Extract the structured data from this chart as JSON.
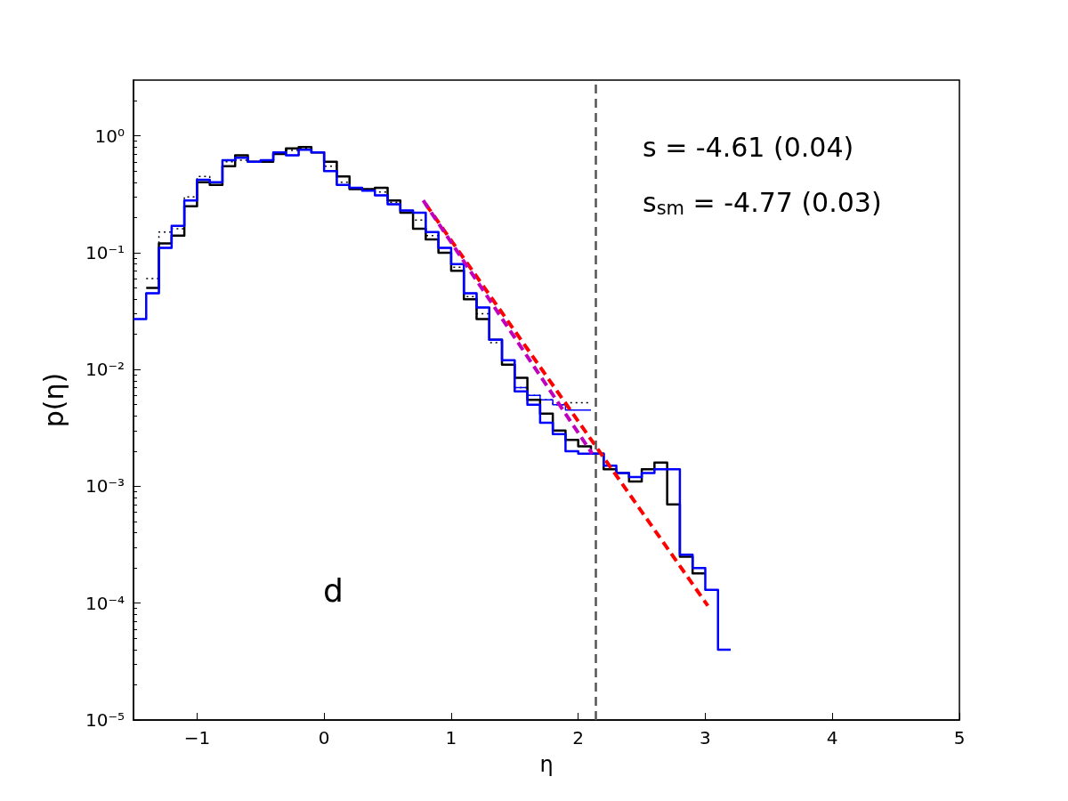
{
  "chart_data": {
    "type": "step",
    "xlabel": "η",
    "ylabel": "p(η)",
    "log": "y",
    "grid": false,
    "marker": "none",
    "xlim": [
      -1.5,
      5
    ],
    "xticks": [
      {
        "value": -1,
        "label": "−1"
      },
      0,
      1,
      2,
      3,
      4,
      5
    ],
    "ylim": [
      1e-05,
      3
    ],
    "yticks": [
      {
        "value": 1e-05,
        "label": "10⁻⁵"
      },
      {
        "value": 0.0001,
        "label": "10⁻⁴"
      },
      {
        "value": 0.001,
        "label": "10⁻³"
      },
      {
        "value": 0.01,
        "label": "10⁻²"
      },
      {
        "value": 0.1,
        "label": "10⁻¹"
      },
      {
        "value": 1,
        "label": "10⁰"
      }
    ],
    "series": [
      {
        "color": "#000000",
        "line_style": "dotted",
        "x": [
          -1.4,
          -1.3,
          -1.2,
          -1.1,
          -1.0,
          -0.9,
          -0.8,
          -0.7,
          -0.6,
          -0.5,
          -0.4,
          -0.3,
          -0.2,
          -0.1,
          0.0,
          0.1,
          0.2,
          0.3,
          0.4,
          0.5,
          0.6,
          0.7,
          0.8,
          0.9,
          1.0,
          1.1,
          1.2,
          1.3,
          1.4,
          1.5,
          1.6,
          1.7,
          1.8,
          1.9,
          2.0,
          2.1
        ],
        "values": [
          0.06,
          0.15,
          0.16,
          0.3,
          0.45,
          0.4,
          0.6,
          0.62,
          0.6,
          0.62,
          0.72,
          0.75,
          0.78,
          0.72,
          0.55,
          0.4,
          0.36,
          0.35,
          0.33,
          0.27,
          0.22,
          0.19,
          0.14,
          0.1,
          0.075,
          0.042,
          0.03,
          0.017,
          0.012,
          0.007,
          0.006,
          0.0055,
          0.005,
          0.0052,
          0.0052,
          0.0052
        ]
      },
      {
        "color": "#0000ff",
        "line_style": "solid",
        "x": [
          -1.4,
          -1.3,
          -1.2,
          -1.1,
          -1.0,
          -0.9,
          -0.8,
          -0.7,
          -0.6,
          -0.5,
          -0.4,
          -0.3,
          -0.2,
          -0.1,
          0.0,
          0.1,
          0.2,
          0.3,
          0.4,
          0.5,
          0.6,
          0.7,
          0.8,
          0.9,
          1.0,
          1.1,
          1.2,
          1.3,
          1.4,
          1.5,
          1.6,
          1.7,
          1.8,
          1.9,
          2.0,
          2.1
        ],
        "values": [
          0.045,
          0.11,
          0.17,
          0.28,
          0.42,
          0.4,
          0.62,
          0.65,
          0.6,
          0.62,
          0.72,
          0.68,
          0.76,
          0.72,
          0.5,
          0.38,
          0.36,
          0.34,
          0.31,
          0.26,
          0.23,
          0.22,
          0.15,
          0.11,
          0.08,
          0.045,
          0.034,
          0.018,
          0.012,
          0.007,
          0.006,
          0.0055,
          0.005,
          0.0045,
          0.0045,
          0.0045
        ]
      },
      {
        "color": "#000000",
        "line_style": "solid",
        "x": [
          -1.4,
          -1.3,
          -1.2,
          -1.1,
          -1.0,
          -0.9,
          -0.8,
          -0.7,
          -0.6,
          -0.5,
          -0.4,
          -0.3,
          -0.2,
          -0.1,
          0.0,
          0.1,
          0.2,
          0.3,
          0.4,
          0.5,
          0.6,
          0.7,
          0.8,
          0.9,
          1.0,
          1.1,
          1.2,
          1.3,
          1.4,
          1.5,
          1.6,
          1.7,
          1.8,
          1.9,
          2.0,
          2.1,
          2.2,
          2.3,
          2.4,
          2.5,
          2.6,
          2.7,
          2.8,
          2.9,
          3.0
        ],
        "values": [
          0.05,
          0.12,
          0.14,
          0.25,
          0.4,
          0.38,
          0.55,
          0.68,
          0.6,
          0.6,
          0.7,
          0.78,
          0.8,
          0.72,
          0.6,
          0.45,
          0.35,
          0.35,
          0.36,
          0.28,
          0.22,
          0.16,
          0.13,
          0.1,
          0.07,
          0.04,
          0.027,
          0.018,
          0.011,
          0.0085,
          0.0055,
          0.0042,
          0.003,
          0.0025,
          0.0022,
          0.0019,
          0.0014,
          0.0013,
          0.0011,
          0.0014,
          0.0016,
          0.0007,
          0.00025,
          0.00018,
          0.00018
        ]
      },
      {
        "color": "#0000ff",
        "line_style": "solid",
        "x": [
          -1.5,
          -1.4,
          -1.3,
          -1.2,
          -1.1,
          -1.0,
          -0.9,
          -0.8,
          -0.7,
          -0.6,
          -0.5,
          -0.4,
          -0.3,
          -0.2,
          -0.1,
          0.0,
          0.1,
          0.2,
          0.3,
          0.4,
          0.5,
          0.6,
          0.7,
          0.8,
          0.9,
          1.0,
          1.1,
          1.2,
          1.3,
          1.4,
          1.5,
          1.6,
          1.7,
          1.8,
          1.9,
          2.0,
          2.1,
          2.2,
          2.3,
          2.4,
          2.5,
          2.6,
          2.7,
          2.8,
          2.9,
          3.0,
          3.1,
          3.2
        ],
        "values": [
          0.027,
          0.045,
          0.11,
          0.17,
          0.28,
          0.42,
          0.4,
          0.62,
          0.65,
          0.6,
          0.62,
          0.72,
          0.68,
          0.76,
          0.72,
          0.5,
          0.38,
          0.36,
          0.34,
          0.31,
          0.26,
          0.23,
          0.22,
          0.15,
          0.11,
          0.08,
          0.045,
          0.034,
          0.018,
          0.012,
          0.0065,
          0.005,
          0.0035,
          0.0028,
          0.002,
          0.0019,
          0.0019,
          0.0015,
          0.0013,
          0.0012,
          0.0013,
          0.0014,
          0.0014,
          0.00026,
          0.0002,
          0.00013,
          4e-05,
          4e-05
        ]
      },
      {
        "type": "line",
        "color": "#ff0000",
        "line_style": "dashed",
        "x": [
          0.8,
          3.02
        ],
        "values": [
          0.26,
          9.5e-05
        ]
      },
      {
        "type": "line",
        "color": "#bf00bf",
        "line_style": "dashed",
        "x": [
          0.78,
          2.11
        ],
        "values": [
          0.28,
          0.0019
        ]
      }
    ],
    "ref_lines": [
      {
        "axis": "x",
        "value": 2.14,
        "color": "#555555",
        "line_style": "dashed"
      }
    ],
    "annotations": [
      "s = -4.61 (0.04)",
      "s$_{sm}$ = -4.77 (0.03)",
      "d"
    ]
  }
}
